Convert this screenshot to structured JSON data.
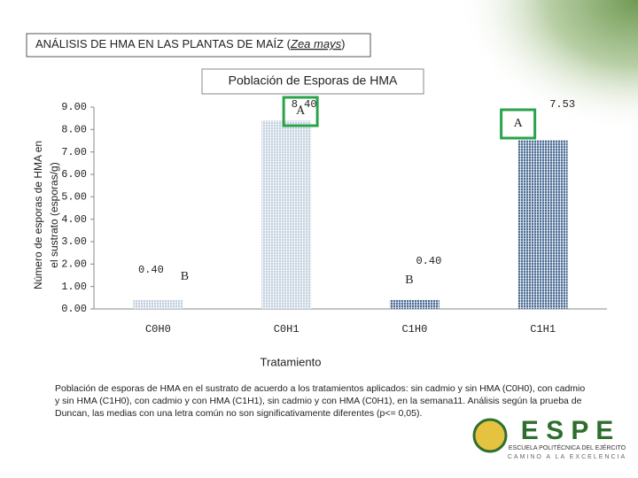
{
  "slide_title": [
    "ANÁLISIS DE HMA EN LAS PLANTAS DE MAÍZ (",
    "Zea mays",
    ")"
  ],
  "chart_data": {
    "type": "bar",
    "title": "Población de Esporas de HMA",
    "ylabel": [
      "Número de esporas de HMA en",
      "el sustrato (esporas/g)"
    ],
    "xlabel": "Tratamiento",
    "categories": [
      "C0H0",
      "C0H1",
      "C1H0",
      "C1H1"
    ],
    "values": [
      0.4,
      8.4,
      0.4,
      7.53
    ],
    "value_labels": [
      "0.40",
      "8.40",
      "0.40",
      "7.53"
    ],
    "letters": [
      "B",
      "A",
      "B",
      "A"
    ],
    "colors": [
      "#c3d1df",
      "#c3d1df",
      "#4c6d96",
      "#4c6d96"
    ],
    "ylim": [
      0,
      9
    ],
    "yticks": [
      {
        "value": 0,
        "label": "0.00"
      },
      {
        "value": 1,
        "label": "1.00"
      },
      {
        "value": 2,
        "label": "2.00"
      },
      {
        "value": 3,
        "label": "3.00"
      },
      {
        "value": 4,
        "label": "4.00"
      },
      {
        "value": 5,
        "label": "5.00"
      },
      {
        "value": 6,
        "label": "6.00"
      },
      {
        "value": 7,
        "label": "7.00"
      },
      {
        "value": 8,
        "label": "8.00"
      },
      {
        "value": 9,
        "label": "9.00"
      }
    ]
  },
  "caption": "Población de esporas de HMA en el sustrato de acuerdo a los tratamientos aplicados: sin cadmio y sin HMA (C0H0), con cadmio y sin HMA (C1H0), con cadmio y con HMA (C1H1), sin cadmio y con HMA (C0H1), en la semana11. Análisis según la prueba de Duncan, las medias con una letra común no son significativamente diferentes (p<= 0,05).",
  "logo": {
    "name": "E S P E",
    "school": "ESCUELA POLITÉCNICA DEL EJÉRCITO",
    "motto": "CAMINO A LA EXCELENCIA"
  }
}
